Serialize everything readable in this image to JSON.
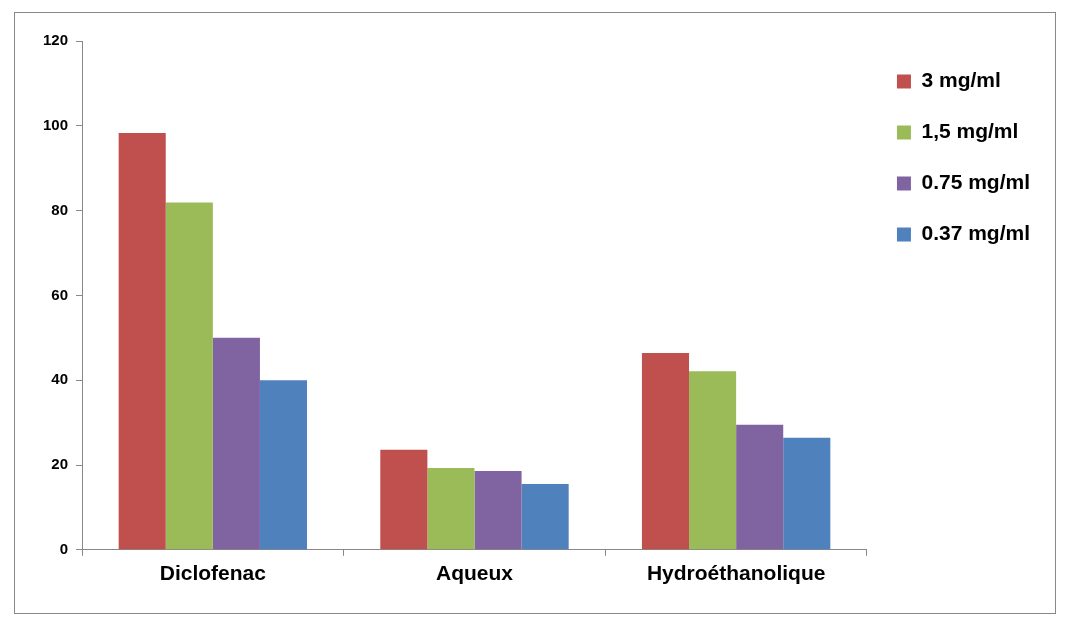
{
  "chart_data": {
    "type": "bar",
    "categories": [
      "Diclofenac",
      "Aqueux",
      "Hydroéthanolique"
    ],
    "series": [
      {
        "name": "3 mg/ml",
        "color": "#c0504d",
        "values": [
          98.3,
          23.6,
          46.4
        ]
      },
      {
        "name": "1,5 mg/ml",
        "color": "#9bbb59",
        "values": [
          81.9,
          19.3,
          42.1
        ]
      },
      {
        "name": "0.75 mg/ml",
        "color": "#8064a2",
        "values": [
          50,
          18.6,
          29.5
        ]
      },
      {
        "name": "0.37 mg/ml",
        "color": "#4f81bd",
        "values": [
          40,
          15.5,
          26.4
        ]
      }
    ],
    "ylim": [
      0,
      120
    ],
    "yticks": [
      0,
      20,
      40,
      60,
      80,
      100,
      120
    ],
    "grid": false,
    "legend": "right"
  }
}
